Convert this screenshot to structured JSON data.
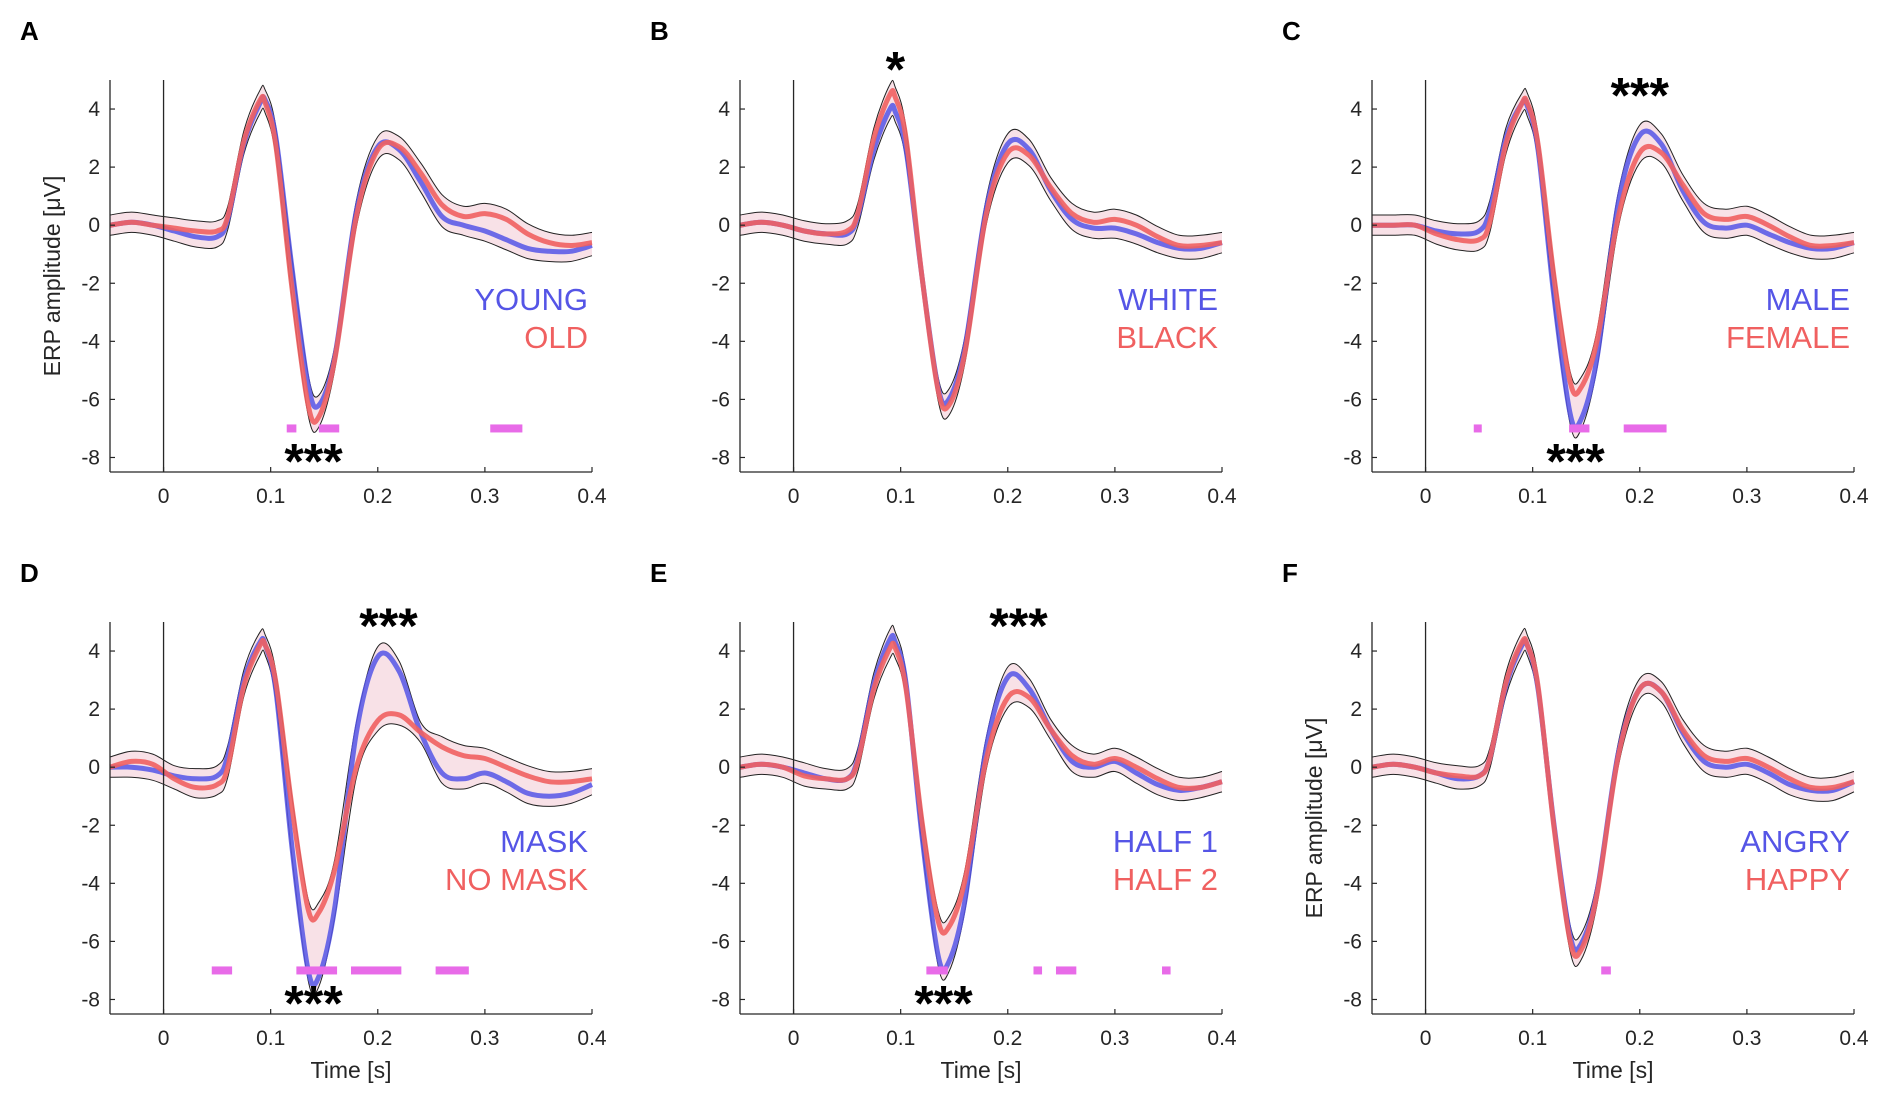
{
  "chart_data": [
    {
      "panel": "A",
      "type": "line",
      "xlabel": "",
      "ylabel": "ERP amplitude [μV]",
      "xlim": [
        -0.05,
        0.4
      ],
      "ylim": [
        -8.5,
        5
      ],
      "xticks": [
        "0",
        "0.1",
        "0.2",
        "0.3",
        "0.4"
      ],
      "yticks": [
        "-8",
        "-6",
        "-4",
        "-2",
        "0",
        "2",
        "4"
      ],
      "series": [
        {
          "name": "YOUNG",
          "color": "#5555e6",
          "x": [
            -0.05,
            -0.03,
            -0.01,
            0.01,
            0.03,
            0.05,
            0.06,
            0.075,
            0.09,
            0.095,
            0.105,
            0.12,
            0.135,
            0.145,
            0.16,
            0.18,
            0.2,
            0.22,
            0.24,
            0.26,
            0.28,
            0.3,
            0.32,
            0.34,
            0.36,
            0.38,
            0.4
          ],
          "values": [
            0,
            0.1,
            0,
            -0.2,
            -0.4,
            -0.4,
            0.2,
            2.8,
            4.2,
            4.3,
            3,
            -1.5,
            -5.5,
            -6.2,
            -4.5,
            0.5,
            2.7,
            2.6,
            1.5,
            0.3,
            0,
            -0.2,
            -0.5,
            -0.8,
            -0.9,
            -0.9,
            -0.7
          ]
        },
        {
          "name": "OLD",
          "color": "#f06060",
          "x": [
            -0.05,
            -0.03,
            -0.01,
            0.01,
            0.03,
            0.05,
            0.06,
            0.075,
            0.09,
            0.095,
            0.105,
            0.12,
            0.135,
            0.145,
            0.16,
            0.18,
            0.2,
            0.22,
            0.24,
            0.26,
            0.28,
            0.3,
            0.32,
            0.34,
            0.36,
            0.38,
            0.4
          ],
          "values": [
            0,
            0.1,
            0,
            -0.1,
            -0.2,
            -0.2,
            0.3,
            2.9,
            4.3,
            4.2,
            2.7,
            -2.2,
            -6.2,
            -6.6,
            -4.6,
            0.3,
            2.6,
            2.7,
            1.8,
            0.7,
            0.3,
            0.4,
            0.2,
            -0.3,
            -0.6,
            -0.7,
            -0.6
          ]
        }
      ],
      "significance_bars": [
        [
          0.115,
          0.124
        ],
        [
          0.145,
          0.164
        ],
        [
          0.305,
          0.335
        ]
      ],
      "annotations": [
        {
          "text": "***",
          "x": 0.14,
          "y": -8.1
        }
      ]
    },
    {
      "panel": "B",
      "type": "line",
      "xlabel": "",
      "ylabel": "",
      "xlim": [
        -0.05,
        0.4
      ],
      "ylim": [
        -8.5,
        5
      ],
      "xticks": [
        "0",
        "0.1",
        "0.2",
        "0.3",
        "0.4"
      ],
      "yticks": [
        "-8",
        "-6",
        "-4",
        "-2",
        "0",
        "2",
        "4"
      ],
      "series": [
        {
          "name": "WHITE",
          "color": "#5555e6",
          "x": [
            -0.05,
            -0.03,
            -0.01,
            0.01,
            0.03,
            0.05,
            0.06,
            0.075,
            0.09,
            0.095,
            0.105,
            0.12,
            0.135,
            0.145,
            0.16,
            0.18,
            0.2,
            0.22,
            0.24,
            0.26,
            0.28,
            0.3,
            0.32,
            0.34,
            0.36,
            0.38,
            0.4
          ],
          "values": [
            0,
            0.1,
            0,
            -0.2,
            -0.3,
            -0.3,
            0.3,
            2.6,
            4,
            3.9,
            2.6,
            -1.8,
            -5.6,
            -6,
            -4.2,
            0.6,
            2.8,
            2.6,
            1.2,
            0.2,
            -0.1,
            -0.1,
            -0.3,
            -0.6,
            -0.8,
            -0.8,
            -0.6
          ]
        },
        {
          "name": "BLACK",
          "color": "#f06060",
          "x": [
            -0.05,
            -0.03,
            -0.01,
            0.01,
            0.03,
            0.05,
            0.06,
            0.075,
            0.09,
            0.095,
            0.105,
            0.12,
            0.135,
            0.145,
            0.16,
            0.18,
            0.2,
            0.22,
            0.24,
            0.26,
            0.28,
            0.3,
            0.32,
            0.34,
            0.36,
            0.38,
            0.4
          ],
          "values": [
            0,
            0.1,
            0,
            -0.2,
            -0.3,
            -0.2,
            0.4,
            3,
            4.5,
            4.4,
            3,
            -1.8,
            -5.7,
            -6.2,
            -4.4,
            0.4,
            2.5,
            2.4,
            1.3,
            0.4,
            0.1,
            0.2,
            0,
            -0.4,
            -0.7,
            -0.7,
            -0.6
          ]
        }
      ],
      "significance_bars": [],
      "annotations": [
        {
          "text": "*",
          "x": 0.095,
          "y": 5.4
        }
      ]
    },
    {
      "panel": "C",
      "type": "line",
      "xlabel": "",
      "ylabel": "",
      "xlim": [
        -0.05,
        0.4
      ],
      "ylim": [
        -8.5,
        5
      ],
      "xticks": [
        "0",
        "0.1",
        "0.2",
        "0.3",
        "0.4"
      ],
      "yticks": [
        "-8",
        "-6",
        "-4",
        "-2",
        "0",
        "2",
        "4"
      ],
      "series": [
        {
          "name": "MALE",
          "color": "#5555e6",
          "x": [
            -0.05,
            -0.03,
            -0.01,
            0.01,
            0.03,
            0.05,
            0.06,
            0.075,
            0.09,
            0.095,
            0.105,
            0.12,
            0.135,
            0.145,
            0.16,
            0.18,
            0.2,
            0.22,
            0.24,
            0.26,
            0.28,
            0.3,
            0.32,
            0.34,
            0.36,
            0.38,
            0.4
          ],
          "values": [
            0,
            0,
            0,
            -0.2,
            -0.3,
            -0.2,
            0.5,
            3,
            4.2,
            4.1,
            2.6,
            -2.5,
            -6.5,
            -6.7,
            -4.6,
            0.8,
            3.1,
            2.8,
            1.2,
            0.1,
            -0.1,
            0,
            -0.3,
            -0.6,
            -0.8,
            -0.8,
            -0.6
          ]
        },
        {
          "name": "FEMALE",
          "color": "#f06060",
          "x": [
            -0.05,
            -0.03,
            -0.01,
            0.01,
            0.03,
            0.05,
            0.06,
            0.075,
            0.09,
            0.095,
            0.105,
            0.12,
            0.135,
            0.145,
            0.16,
            0.18,
            0.2,
            0.22,
            0.24,
            0.26,
            0.28,
            0.3,
            0.32,
            0.34,
            0.36,
            0.38,
            0.4
          ],
          "values": [
            0,
            0,
            0,
            -0.3,
            -0.5,
            -0.5,
            0.1,
            2.8,
            4.2,
            4.2,
            2.8,
            -1.8,
            -5.4,
            -5.6,
            -4,
            0.3,
            2.5,
            2.5,
            1.4,
            0.4,
            0.2,
            0.3,
            0,
            -0.4,
            -0.7,
            -0.7,
            -0.6
          ]
        }
      ],
      "significance_bars": [
        [
          0.045,
          0.052
        ],
        [
          0.134,
          0.153
        ],
        [
          0.185,
          0.225
        ]
      ],
      "annotations": [
        {
          "text": "***",
          "x": 0.14,
          "y": -8.1
        },
        {
          "text": "***",
          "x": 0.2,
          "y": 4.5
        }
      ]
    },
    {
      "panel": "D",
      "type": "line",
      "xlabel": "Time [s]",
      "ylabel": "",
      "xlim": [
        -0.05,
        0.4
      ],
      "ylim": [
        -8.5,
        5
      ],
      "xticks": [
        "0",
        "0.1",
        "0.2",
        "0.3",
        "0.4"
      ],
      "yticks": [
        "-8",
        "-6",
        "-4",
        "-2",
        "0",
        "2",
        "4"
      ],
      "series": [
        {
          "name": "MASK",
          "color": "#5555e6",
          "x": [
            -0.05,
            -0.03,
            -0.01,
            0.01,
            0.03,
            0.05,
            0.06,
            0.075,
            0.09,
            0.095,
            0.105,
            0.12,
            0.135,
            0.145,
            0.16,
            0.18,
            0.2,
            0.22,
            0.24,
            0.26,
            0.28,
            0.3,
            0.32,
            0.34,
            0.36,
            0.38,
            0.4
          ],
          "values": [
            0,
            0,
            -0.1,
            -0.3,
            -0.4,
            -0.3,
            0.4,
            3,
            4.3,
            4.2,
            2.6,
            -2.8,
            -7,
            -7.2,
            -4.8,
            1.2,
            3.8,
            3.3,
            1.2,
            -0.2,
            -0.4,
            -0.2,
            -0.5,
            -0.9,
            -1,
            -0.9,
            -0.6
          ]
        },
        {
          "name": "NO MASK",
          "color": "#f06060",
          "x": [
            -0.05,
            -0.03,
            -0.01,
            0.01,
            0.03,
            0.05,
            0.06,
            0.075,
            0.09,
            0.095,
            0.105,
            0.12,
            0.135,
            0.145,
            0.16,
            0.18,
            0.2,
            0.22,
            0.24,
            0.26,
            0.28,
            0.3,
            0.32,
            0.34,
            0.36,
            0.38,
            0.4
          ],
          "values": [
            0,
            0.2,
            0.1,
            -0.4,
            -0.7,
            -0.6,
            0,
            2.8,
            4.2,
            4.2,
            2.9,
            -1.4,
            -4.9,
            -5,
            -3.5,
            0,
            1.6,
            1.8,
            1.2,
            0.7,
            0.4,
            0.3,
            0,
            -0.3,
            -0.5,
            -0.5,
            -0.4
          ]
        }
      ],
      "significance_bars": [
        [
          0.045,
          0.064
        ],
        [
          0.124,
          0.162
        ],
        [
          0.175,
          0.222
        ],
        [
          0.254,
          0.285
        ]
      ],
      "annotations": [
        {
          "text": "***",
          "x": 0.14,
          "y": -8.1
        },
        {
          "text": "***",
          "x": 0.21,
          "y": 4.9
        }
      ]
    },
    {
      "panel": "E",
      "type": "line",
      "xlabel": "Time [s]",
      "ylabel": "",
      "xlim": [
        -0.05,
        0.4
      ],
      "ylim": [
        -8.5,
        5
      ],
      "xticks": [
        "0",
        "0.1",
        "0.2",
        "0.3",
        "0.4"
      ],
      "yticks": [
        "-8",
        "-6",
        "-4",
        "-2",
        "0",
        "2",
        "4"
      ],
      "series": [
        {
          "name": "HALF 1",
          "color": "#5555e6",
          "x": [
            -0.05,
            -0.03,
            -0.01,
            0.01,
            0.03,
            0.05,
            0.06,
            0.075,
            0.09,
            0.095,
            0.105,
            0.12,
            0.135,
            0.145,
            0.16,
            0.18,
            0.2,
            0.22,
            0.24,
            0.26,
            0.28,
            0.3,
            0.32,
            0.34,
            0.36,
            0.38,
            0.4
          ],
          "values": [
            0,
            0.1,
            0,
            -0.2,
            -0.4,
            -0.4,
            0.3,
            2.9,
            4.4,
            4.3,
            2.9,
            -2.4,
            -6.5,
            -6.7,
            -4.6,
            0.7,
            3.1,
            2.7,
            1.3,
            0.2,
            0,
            0.2,
            -0.2,
            -0.6,
            -0.8,
            -0.7,
            -0.5
          ]
        },
        {
          "name": "HALF 2",
          "color": "#f06060",
          "x": [
            -0.05,
            -0.03,
            -0.01,
            0.01,
            0.03,
            0.05,
            0.06,
            0.075,
            0.09,
            0.095,
            0.105,
            0.12,
            0.135,
            0.145,
            0.16,
            0.18,
            0.2,
            0.22,
            0.24,
            0.26,
            0.28,
            0.3,
            0.32,
            0.34,
            0.36,
            0.38,
            0.4
          ],
          "values": [
            0,
            0.1,
            0,
            -0.3,
            -0.4,
            -0.4,
            0.2,
            2.7,
            4.1,
            4.1,
            2.7,
            -1.9,
            -5.3,
            -5.5,
            -3.9,
            0.3,
            2.4,
            2.4,
            1.3,
            0.4,
            0.1,
            0.3,
            0,
            -0.4,
            -0.7,
            -0.7,
            -0.5
          ]
        }
      ],
      "significance_bars": [
        [
          0.124,
          0.144
        ],
        [
          0.224,
          0.232
        ],
        [
          0.245,
          0.264
        ],
        [
          0.344,
          0.352
        ]
      ],
      "annotations": [
        {
          "text": "***",
          "x": 0.14,
          "y": -8.1
        },
        {
          "text": "***",
          "x": 0.21,
          "y": 4.9
        }
      ]
    },
    {
      "panel": "F",
      "type": "line",
      "xlabel": "Time [s]",
      "ylabel": "ERP amplitude [μV]",
      "xlim": [
        -0.05,
        0.4
      ],
      "ylim": [
        -8.5,
        5
      ],
      "xticks": [
        "0",
        "0.1",
        "0.2",
        "0.3",
        "0.4"
      ],
      "yticks": [
        "-8",
        "-6",
        "-4",
        "-2",
        "0",
        "2",
        "4"
      ],
      "series": [
        {
          "name": "ANGRY",
          "color": "#5555e6",
          "x": [
            -0.05,
            -0.03,
            -0.01,
            0.01,
            0.03,
            0.05,
            0.06,
            0.075,
            0.09,
            0.095,
            0.105,
            0.12,
            0.135,
            0.145,
            0.16,
            0.18,
            0.2,
            0.22,
            0.24,
            0.26,
            0.28,
            0.3,
            0.32,
            0.34,
            0.36,
            0.38,
            0.4
          ],
          "values": [
            0,
            0.1,
            0,
            -0.2,
            -0.4,
            -0.3,
            0.3,
            2.8,
            4.2,
            4.2,
            2.7,
            -2,
            -5.8,
            -6.1,
            -4.3,
            0.5,
            2.7,
            2.6,
            1.2,
            0.2,
            0,
            0.1,
            -0.2,
            -0.6,
            -0.8,
            -0.8,
            -0.5
          ]
        },
        {
          "name": "HAPPY",
          "color": "#f06060",
          "x": [
            -0.05,
            -0.03,
            -0.01,
            0.01,
            0.03,
            0.05,
            0.06,
            0.075,
            0.09,
            0.095,
            0.105,
            0.12,
            0.135,
            0.145,
            0.16,
            0.18,
            0.2,
            0.22,
            0.24,
            0.26,
            0.28,
            0.3,
            0.32,
            0.34,
            0.36,
            0.38,
            0.4
          ],
          "values": [
            0,
            0.1,
            0,
            -0.2,
            -0.3,
            -0.3,
            0.3,
            2.9,
            4.3,
            4.2,
            2.8,
            -2.1,
            -6,
            -6.3,
            -4.4,
            0.4,
            2.7,
            2.6,
            1.3,
            0.4,
            0.2,
            0.3,
            0,
            -0.4,
            -0.7,
            -0.7,
            -0.5
          ]
        }
      ],
      "significance_bars": [
        [
          0.164,
          0.173
        ]
      ],
      "annotations": []
    }
  ]
}
